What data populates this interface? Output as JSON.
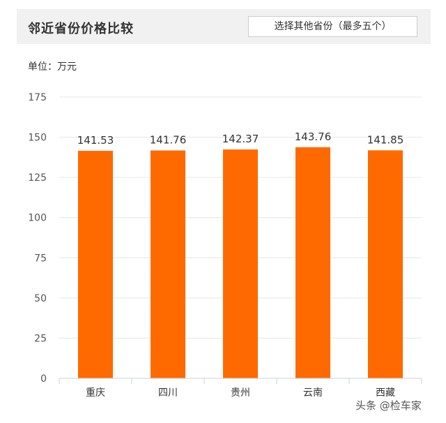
{
  "header": {
    "title": "邻近省份价格比较",
    "select_label": "选择其他省份（最多五个）"
  },
  "unit_label": "单位：万元",
  "watermark": "头条 @检车家",
  "colors": {
    "bar": "#ff6a00",
    "grid": "#e6e6e6",
    "axis": "#c9d2e0"
  },
  "chart_data": {
    "type": "bar",
    "title": "",
    "xlabel": "",
    "ylabel": "",
    "categories": [
      "重庆",
      "四川",
      "贵州",
      "云南",
      "西藏"
    ],
    "values": [
      141.53,
      141.76,
      142.37,
      143.76,
      141.85
    ],
    "value_labels": [
      "141.53",
      "141.76",
      "142.37",
      "143.76",
      "141.85"
    ],
    "ylim": [
      0,
      175
    ],
    "yticks": [
      0,
      25,
      50,
      75,
      100,
      125,
      150,
      175
    ],
    "grid": true,
    "legend": "none"
  }
}
